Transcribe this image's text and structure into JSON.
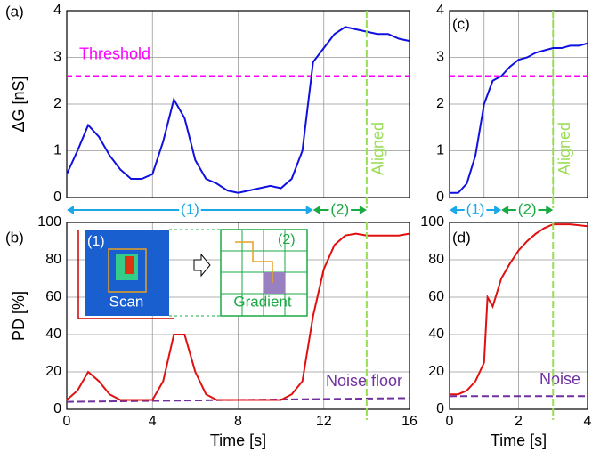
{
  "chart_data": [
    {
      "type": "line",
      "panel_label": "(a)",
      "ylabel": "ΔG [nS]",
      "x": [
        0,
        0.5,
        1,
        1.5,
        2,
        2.5,
        3,
        3.5,
        4,
        4.5,
        5,
        5.5,
        6,
        6.5,
        7,
        7.5,
        8,
        8.5,
        9,
        9.5,
        10,
        10.5,
        11,
        11.5,
        12,
        12.5,
        13,
        13.5,
        14,
        14.5,
        15,
        15.5,
        16
      ],
      "series": [
        {
          "color": "#1010e0",
          "values": [
            0.5,
            1.0,
            1.55,
            1.3,
            0.9,
            0.6,
            0.4,
            0.4,
            0.5,
            1.2,
            2.1,
            1.7,
            0.8,
            0.4,
            0.3,
            0.15,
            0.1,
            0.15,
            0.2,
            0.25,
            0.2,
            0.4,
            1.0,
            2.9,
            3.2,
            3.5,
            3.65,
            3.6,
            3.55,
            3.5,
            3.5,
            3.4,
            3.35
          ]
        }
      ],
      "xlim": [
        0,
        16
      ],
      "xticks": [
        0,
        4,
        8,
        12,
        16
      ],
      "ylim": [
        0,
        4
      ],
      "yticks": [
        0,
        1,
        2,
        3,
        4
      ],
      "grid": true,
      "threshold": {
        "label": "Threshold",
        "value": 2.6,
        "color": "#ff00ff"
      },
      "aligned": {
        "label": "Aligned",
        "value": 14,
        "color": "#99dd55"
      },
      "phases": [
        {
          "label": "(1)",
          "start": 0,
          "end": 11.5,
          "color": "#1aa8e8"
        },
        {
          "label": "(2)",
          "start": 11.5,
          "end": 14,
          "color": "#1aaa44"
        }
      ]
    },
    {
      "type": "line",
      "panel_label": "(b)",
      "ylabel": "PD [%]",
      "xlabel": "Time [s]",
      "x": [
        0,
        0.5,
        1,
        1.5,
        2,
        2.5,
        3,
        3.5,
        4,
        4.5,
        5,
        5.5,
        6,
        6.5,
        7,
        7.5,
        8,
        8.5,
        9,
        9.5,
        10,
        10.5,
        11,
        11.5,
        12,
        12.5,
        13,
        13.5,
        14,
        14.5,
        15,
        15.5,
        16
      ],
      "series": [
        {
          "color": "#e01010",
          "values": [
            5,
            10,
            20,
            15,
            8,
            5,
            5,
            5,
            5,
            15,
            40,
            40,
            20,
            8,
            5,
            5,
            5,
            5,
            5,
            5,
            5,
            8,
            15,
            50,
            75,
            88,
            93,
            94,
            93,
            93,
            93,
            93,
            94
          ]
        }
      ],
      "xlim": [
        0,
        16
      ],
      "xticks": [
        0,
        4,
        8,
        12,
        16
      ],
      "ylim": [
        0,
        100
      ],
      "yticks": [
        0,
        20,
        40,
        60,
        80,
        100
      ],
      "grid": true,
      "aligned": {
        "value": 14,
        "color": "#99dd55"
      },
      "noise": {
        "label": "Noise floor",
        "x": [
          0,
          16
        ],
        "values": [
          4,
          6
        ],
        "color": "#7030a0"
      },
      "inset": {
        "labels": [
          "(1)",
          "Scan",
          "(2)",
          "Gradient"
        ]
      }
    },
    {
      "type": "line",
      "panel_label": "(c)",
      "x": [
        0,
        0.25,
        0.5,
        0.75,
        1,
        1.25,
        1.5,
        1.75,
        2,
        2.25,
        2.5,
        2.75,
        3,
        3.25,
        3.5,
        3.75,
        4
      ],
      "series": [
        {
          "color": "#1010e0",
          "values": [
            0.1,
            0.1,
            0.3,
            0.9,
            2.0,
            2.5,
            2.6,
            2.8,
            2.95,
            3.0,
            3.1,
            3.15,
            3.2,
            3.2,
            3.25,
            3.25,
            3.3
          ]
        }
      ],
      "xlim": [
        0,
        4
      ],
      "xticks": [
        0,
        1,
        2,
        3,
        4
      ],
      "ylim": [
        0,
        4
      ],
      "yticks": [
        0,
        1,
        2,
        3,
        4
      ],
      "grid": true,
      "threshold": {
        "value": 2.6,
        "color": "#ff00ff"
      },
      "aligned": {
        "label": "Aligned",
        "value": 3,
        "color": "#99dd55"
      },
      "phases": [
        {
          "label": "(1)",
          "start": 0,
          "end": 1.5,
          "color": "#1aa8e8"
        },
        {
          "label": "(2)",
          "start": 1.5,
          "end": 3,
          "color": "#1aaa44"
        }
      ]
    },
    {
      "type": "line",
      "panel_label": "(d)",
      "xlabel": "Time [s]",
      "x": [
        0,
        0.25,
        0.5,
        0.75,
        1,
        1.1,
        1.25,
        1.5,
        1.75,
        2,
        2.25,
        2.5,
        2.75,
        3,
        3.5,
        4
      ],
      "series": [
        {
          "color": "#e01010",
          "values": [
            8,
            8,
            10,
            15,
            25,
            60,
            55,
            70,
            78,
            85,
            90,
            94,
            97,
            99,
            99,
            98
          ]
        }
      ],
      "xlim": [
        0,
        4
      ],
      "xticks": [
        0,
        2,
        4
      ],
      "ylim": [
        0,
        100
      ],
      "yticks": [
        0,
        20,
        40,
        60,
        80,
        100
      ],
      "grid": true,
      "aligned": {
        "value": 3,
        "color": "#99dd55"
      },
      "noise": {
        "label": "Noise",
        "x": [
          0,
          4
        ],
        "values": [
          7,
          7
        ],
        "color": "#7030a0"
      }
    }
  ]
}
